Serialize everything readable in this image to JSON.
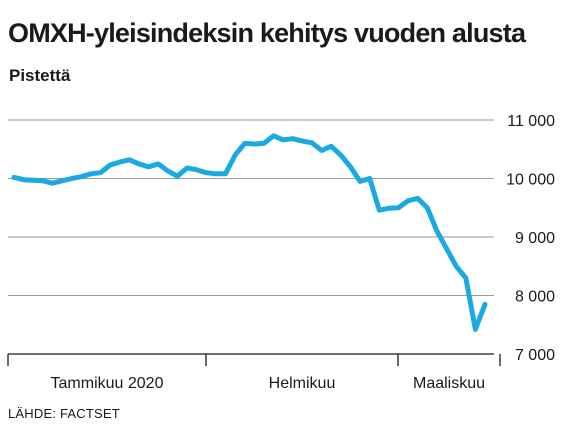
{
  "title": "OMXH-yleisindeksin kehitys vuoden alusta",
  "subtitle": "Pistettä",
  "source": "LÄHDE: FACTSET",
  "colors": {
    "line": "#1ba9e1",
    "grid": "#9a9a9a",
    "text": "#1a1a1a"
  },
  "chart_data": {
    "type": "line",
    "title": "OMXH-yleisindeksin kehitys vuoden alusta",
    "ylabel": "Pistettä",
    "xlabel": "",
    "ylim": [
      7000,
      11000
    ],
    "yticks": [
      7000,
      8000,
      9000,
      10000,
      11000
    ],
    "ytick_labels": [
      "7 000",
      "8 000",
      "9 000",
      "10 000",
      "11 000"
    ],
    "month_labels": [
      "Tammikuu 2020",
      "Helmikuu",
      "Maaliskuu"
    ],
    "months": [
      {
        "label": "Tammikuu 2020",
        "start": 0,
        "end": 20
      },
      {
        "label": "Helmikuu",
        "start": 20,
        "end": 40
      },
      {
        "label": "Maaliskuu",
        "start": 40,
        "end": 49
      }
    ],
    "grid": true,
    "series": [
      {
        "values": [
          10020,
          9980,
          9970,
          9960,
          9920,
          9960,
          10000,
          10030,
          10080,
          10100,
          10230,
          10280,
          10320,
          10250,
          10200,
          10250,
          10130,
          10040,
          10180,
          10150,
          10100,
          10080,
          10080,
          10400,
          10600,
          10590,
          10600,
          10730,
          10660,
          10680,
          10640,
          10610,
          10480,
          10550,
          10400,
          10200,
          9950,
          10000,
          9460,
          9490,
          9500,
          9620,
          9660,
          9500,
          9100,
          8800,
          8500,
          8300,
          7420,
          7850
        ]
      }
    ]
  }
}
